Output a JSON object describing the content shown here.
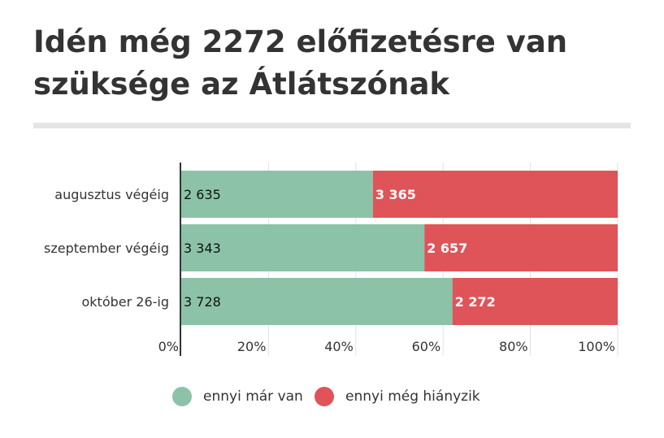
{
  "title": "Idén még 2272 előfizetésre van szüksége az Átlátszónak",
  "colors": {
    "existing": "#8cc3a8",
    "missing": "#df5459",
    "grid": "#e0e0e0",
    "axis": "#333333",
    "text": "#333333"
  },
  "chart_data": {
    "type": "bar",
    "orientation": "horizontal",
    "stacked": "percent",
    "categories": [
      "augusztus végéig",
      "szeptember végéig",
      "október 26-ig"
    ],
    "series": [
      {
        "name": "ennyi már van",
        "values": [
          2635,
          3343,
          3728
        ],
        "labels": [
          "2 635",
          "3 343",
          "3 728"
        ],
        "color": "#8cc3a8"
      },
      {
        "name": "ennyi még hiányzik",
        "values": [
          3365,
          2657,
          2272
        ],
        "labels": [
          "3 365",
          "2 657",
          "2 272"
        ],
        "color": "#df5459"
      }
    ],
    "xticks": [
      "0%",
      "20%",
      "40%",
      "60%",
      "80%",
      "100%"
    ],
    "xlim": [
      0,
      100
    ],
    "grid": true,
    "legend": "bottom"
  }
}
